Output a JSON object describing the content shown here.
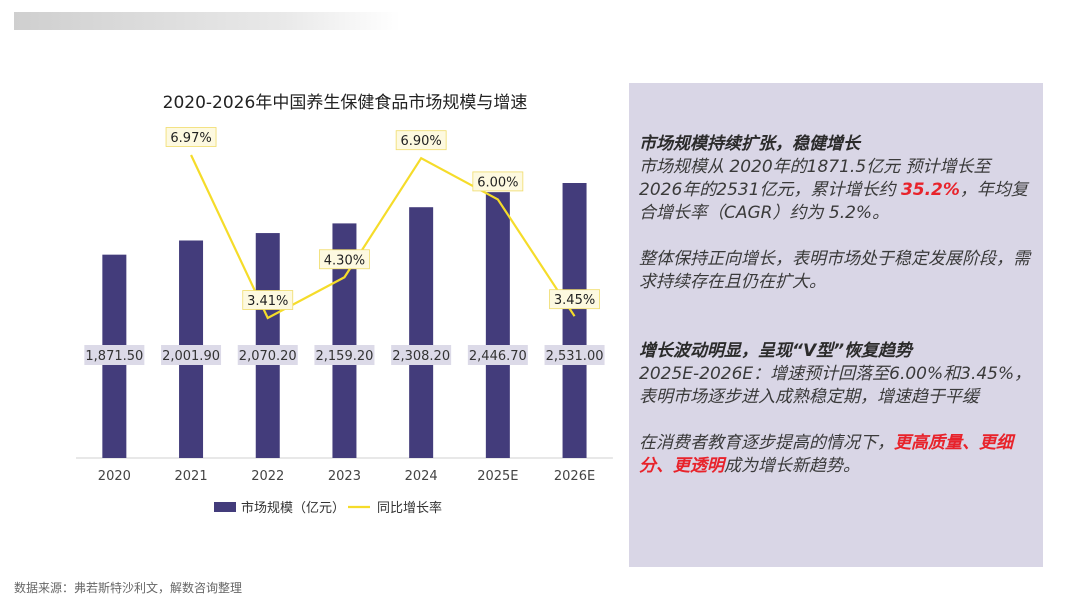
{
  "source": "数据来源：弗若斯特沙利文，解数咨询整理",
  "chart_data": {
    "type": "bar",
    "title": "2020-2026年中国养生保健食品市场规模与增速",
    "categories": [
      "2020",
      "2021",
      "2022",
      "2023",
      "2024",
      "2025E",
      "2026E"
    ],
    "series": [
      {
        "name": "市场规模（亿元）",
        "type": "bar",
        "color": "#433c7b",
        "values": [
          1871.5,
          2001.9,
          2070.2,
          2159.2,
          2308.2,
          2446.7,
          2531.0
        ],
        "labels": [
          "1,871.50",
          "2,001.90",
          "2,070.20",
          "2,159.20",
          "2,308.20",
          "2,446.70",
          "2,531.00"
        ]
      },
      {
        "name": "同比增长率",
        "type": "line",
        "color": "#f5dc2a",
        "values": [
          null,
          6.97,
          3.41,
          4.3,
          6.9,
          6.0,
          3.45
        ],
        "labels": [
          "",
          "6.97%",
          "3.41%",
          "4.30%",
          "6.90%",
          "6.00%",
          "3.45%"
        ]
      }
    ],
    "legend_position": "bottom",
    "grid": false
  },
  "panel": {
    "block1_heading": "市场规模持续扩张，稳健增长",
    "block1_text_a": "市场规模从 2020年的1871.5亿元 预计增长至 2026年的2531亿元，累计增长约 ",
    "block1_highlight": "35.2%",
    "block1_text_b": "，年均复合增长率（CAGR）约为 5.2%。",
    "block2_text": "整体保持正向增长，表明市场处于稳定发展阶段，需求持续存在且仍在扩大。",
    "block3_heading": "增长波动明显，呈现“V型”恢复趋势",
    "block3_text": "2025E-2026E：增速预计回落至6.00%和3.45%，表明市场逐步进入成熟稳定期，增速趋于平缓",
    "block4_text_a": "在消费者教育逐步提高的情况下，",
    "block4_highlight_a": "更高质量、更细分、更透明",
    "block4_text_b": "成为增长新趋势。"
  }
}
